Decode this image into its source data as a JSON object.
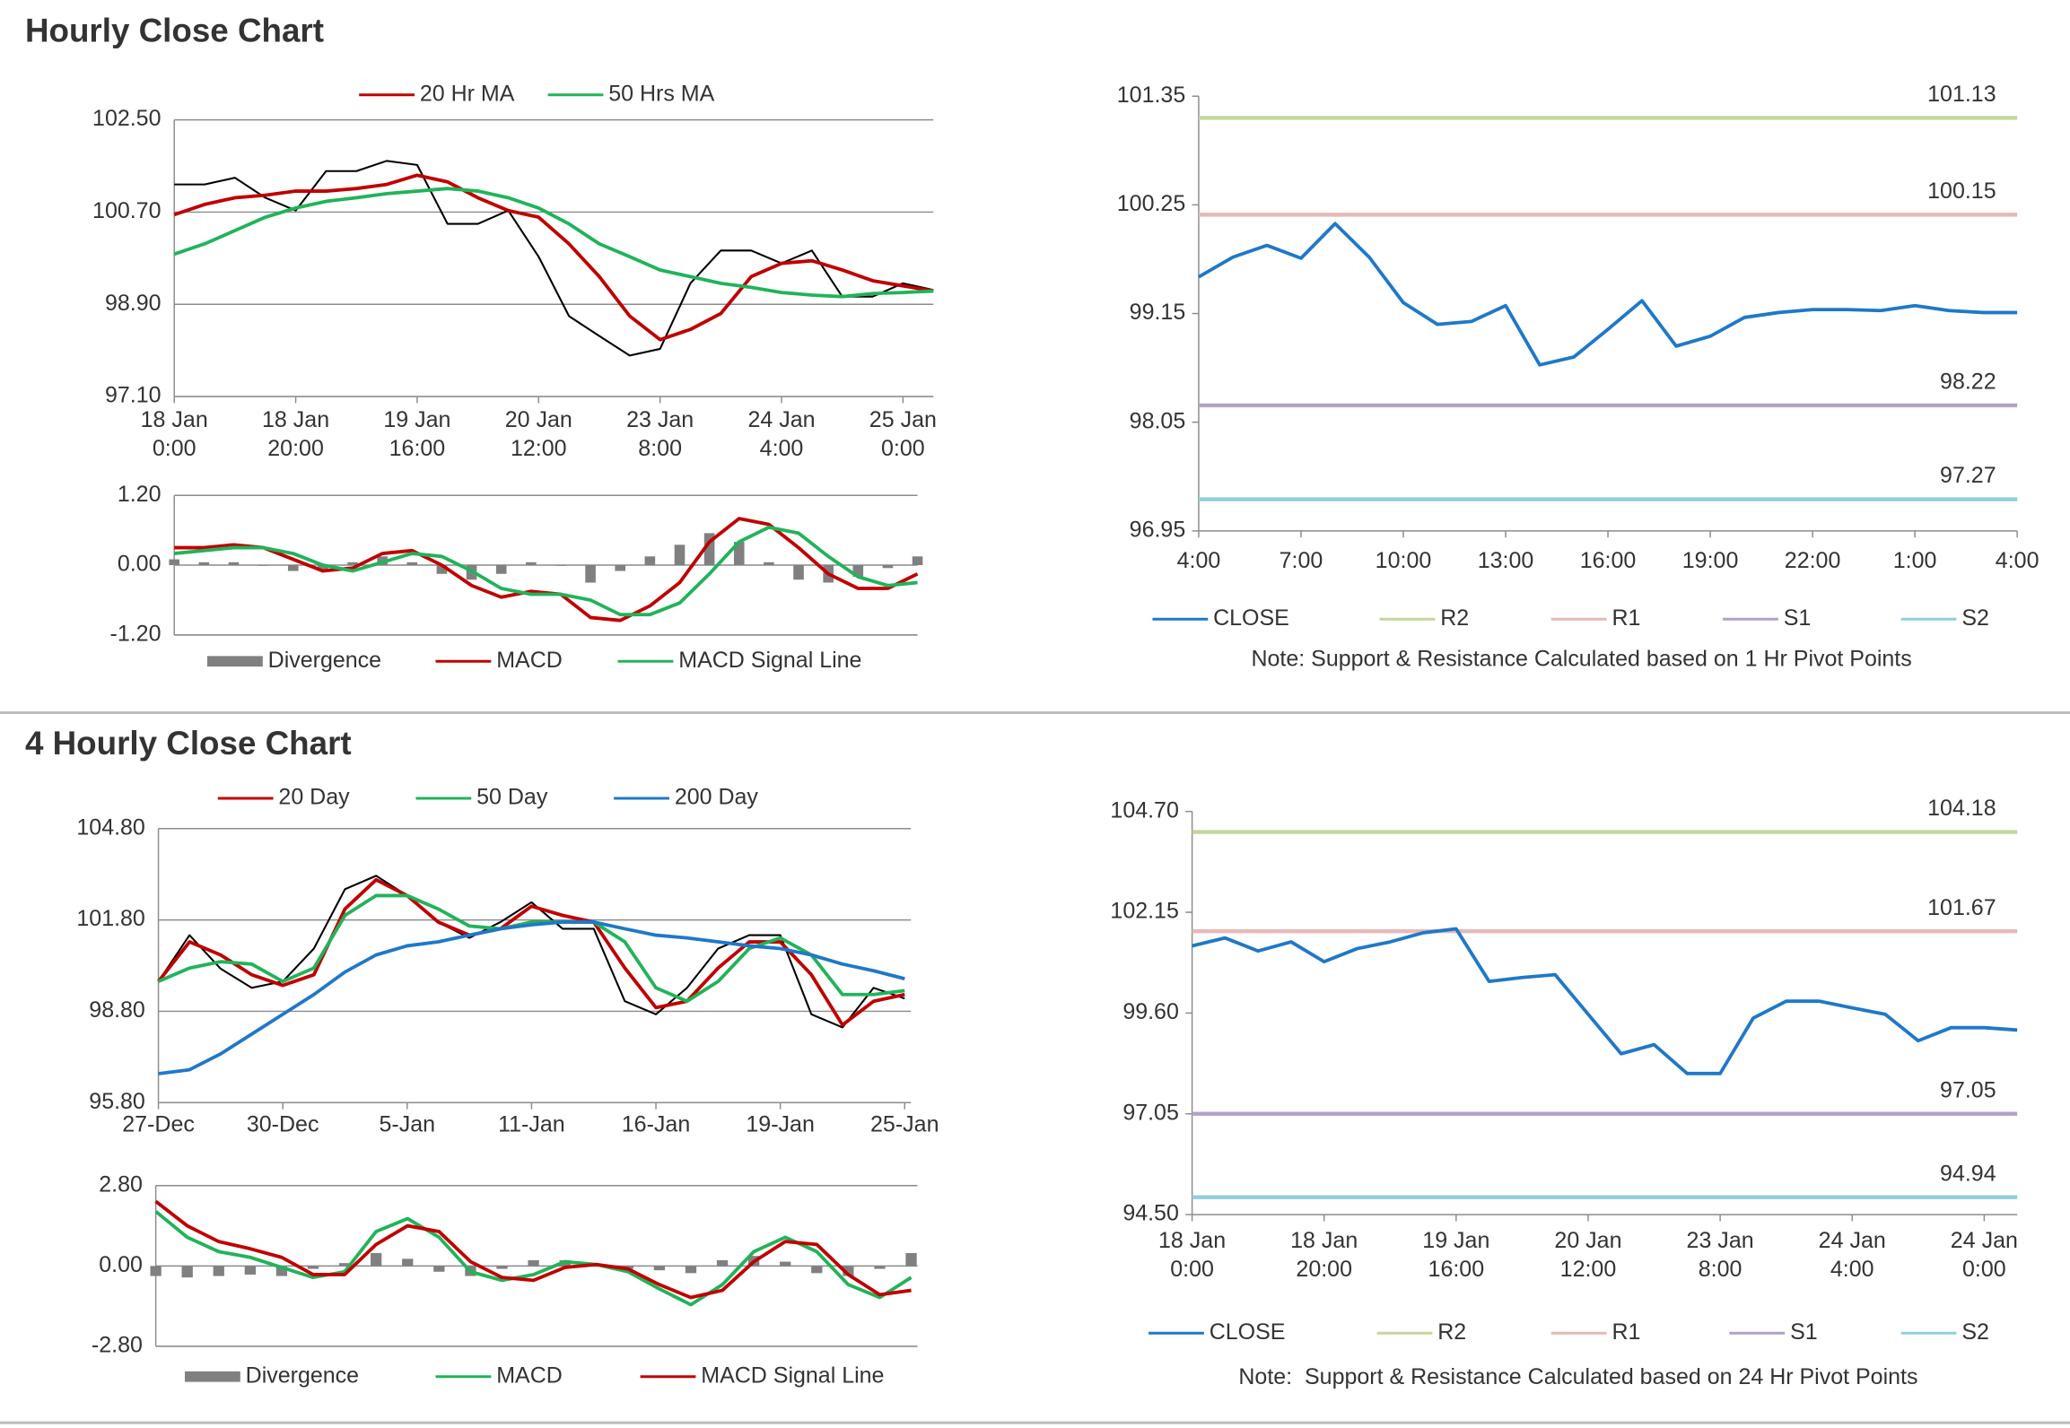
{
  "headings": [
    "Hourly Close Chart",
    "4 Hourly Close Chart"
  ],
  "chart_data": [
    {
      "type": "line",
      "grid": true,
      "x": [
        0,
        5,
        10,
        15,
        20,
        25,
        30,
        35,
        40,
        45,
        50,
        55,
        60,
        65,
        70,
        75,
        80,
        85,
        90,
        95,
        100,
        105,
        110,
        115,
        120,
        125
      ],
      "xlim": [
        0,
        125
      ],
      "xticks": [
        {
          "value": 0,
          "label": "18 Jan 0:00"
        },
        {
          "value": 20,
          "label": "18 Jan 20:00"
        },
        {
          "value": 40,
          "label": "19 Jan 16:00"
        },
        {
          "value": 60,
          "label": "20 Jan 12:00"
        },
        {
          "value": 80,
          "label": "23 Jan 8:00"
        },
        {
          "value": 100,
          "label": "24 Jan 4:00"
        },
        {
          "value": 120,
          "label": "25 Jan 0:00"
        }
      ],
      "ylim": [
        97.1,
        102.5
      ],
      "yticks": [
        {
          "value": 97.1,
          "label": "97.10"
        },
        {
          "value": 98.9,
          "label": "98.90"
        },
        {
          "value": 100.7,
          "label": "100.70"
        },
        {
          "value": 102.5,
          "label": "102.50"
        }
      ],
      "series": [
        {
          "color": "#000000",
          "values": [
            101.24,
            101.24,
            101.37,
            100.98,
            100.73,
            101.5,
            101.5,
            101.7,
            101.62,
            100.47,
            100.47,
            100.73,
            99.83,
            98.67,
            98.28,
            97.9,
            98.03,
            99.31,
            99.95,
            99.95,
            99.7,
            99.95,
            99.05,
            99.05,
            99.31,
            99.18
          ]
        },
        {
          "name": "20 Hr MA",
          "color": "#c00000",
          "values": [
            100.65,
            100.85,
            100.98,
            101.03,
            101.11,
            101.11,
            101.16,
            101.24,
            101.42,
            101.29,
            100.98,
            100.73,
            100.6,
            100.08,
            99.44,
            98.67,
            98.21,
            98.41,
            98.72,
            99.44,
            99.7,
            99.75,
            99.57,
            99.36,
            99.26,
            99.16
          ]
        },
        {
          "name": "50 Hrs MA",
          "color": "#21b35a",
          "values": [
            99.88,
            100.08,
            100.34,
            100.6,
            100.78,
            100.91,
            100.98,
            101.06,
            101.11,
            101.16,
            101.11,
            100.98,
            100.78,
            100.47,
            100.08,
            99.83,
            99.57,
            99.44,
            99.31,
            99.23,
            99.13,
            99.08,
            99.05,
            99.11,
            99.13,
            99.16
          ]
        }
      ]
    },
    {
      "type": "combo",
      "grid": true,
      "x": [
        0,
        5,
        10,
        15,
        20,
        25,
        30,
        35,
        40,
        45,
        50,
        55,
        60,
        65,
        70,
        75,
        80,
        85,
        90,
        95,
        100,
        105,
        110,
        115,
        120,
        125
      ],
      "xlim": [
        0,
        125
      ],
      "ylim": [
        -1.2,
        1.2
      ],
      "yticks": [
        {
          "value": -1.2,
          "label": "-1.20"
        },
        {
          "value": 0,
          "label": "0.00"
        },
        {
          "value": 1.2,
          "label": "1.20"
        }
      ],
      "series": [
        {
          "name": "Divergence",
          "kind": "bar",
          "color": "#808080",
          "values": [
            0.1,
            0.05,
            0.05,
            0,
            -0.1,
            -0.1,
            0.05,
            0.15,
            0.05,
            -0.15,
            -0.25,
            -0.15,
            0.05,
            0,
            -0.3,
            -0.1,
            0.15,
            0.35,
            0.55,
            0.4,
            0.05,
            -0.25,
            -0.3,
            -0.2,
            -0.05,
            0.15
          ]
        },
        {
          "name": "MACD",
          "color": "#c00000",
          "values": [
            0.3,
            0.3,
            0.35,
            0.3,
            0.1,
            -0.1,
            -0.05,
            0.2,
            0.25,
            0,
            -0.35,
            -0.55,
            -0.45,
            -0.5,
            -0.9,
            -0.95,
            -0.7,
            -0.3,
            0.4,
            0.8,
            0.7,
            0.3,
            -0.15,
            -0.4,
            -0.4,
            -0.15
          ]
        },
        {
          "name": "MACD Signal Line",
          "color": "#21b35a",
          "values": [
            0.2,
            0.25,
            0.3,
            0.3,
            0.2,
            0,
            -0.1,
            0.05,
            0.2,
            0.15,
            -0.1,
            -0.4,
            -0.5,
            -0.5,
            -0.6,
            -0.85,
            -0.85,
            -0.65,
            -0.15,
            0.4,
            0.65,
            0.55,
            0.15,
            -0.2,
            -0.35,
            -0.3
          ]
        }
      ]
    },
    {
      "type": "line",
      "grid": false,
      "x": [
        0,
        1,
        2,
        3,
        4,
        5,
        6,
        7,
        8,
        9,
        10,
        11,
        12,
        13,
        14,
        15,
        16,
        17,
        18,
        19,
        20,
        21,
        22,
        23,
        24
      ],
      "xlim": [
        0,
        24
      ],
      "xticks": [
        {
          "value": 0,
          "label": "4:00"
        },
        {
          "value": 3,
          "label": "7:00"
        },
        {
          "value": 6,
          "label": "10:00"
        },
        {
          "value": 9,
          "label": "13:00"
        },
        {
          "value": 12,
          "label": "16:00"
        },
        {
          "value": 15,
          "label": "19:00"
        },
        {
          "value": 18,
          "label": "22:00"
        },
        {
          "value": 21,
          "label": "1:00"
        },
        {
          "value": 24,
          "label": "4:00"
        }
      ],
      "ylim": [
        96.95,
        101.35
      ],
      "yticks": [
        96.95,
        98.05,
        99.15,
        100.25,
        101.35
      ],
      "series": [
        {
          "name": "CLOSE",
          "color": "#1f78c8",
          "values": [
            99.52,
            99.72,
            99.84,
            99.71,
            100.06,
            99.72,
            99.26,
            99.04,
            99.07,
            99.23,
            98.63,
            98.71,
            98.99,
            99.28,
            98.82,
            98.92,
            99.11,
            99.16,
            99.19,
            99.19,
            99.18,
            99.23,
            99.18,
            99.16,
            99.16
          ]
        }
      ],
      "levels": [
        {
          "name": "R2",
          "color": "#c3d69b",
          "value": 101.13
        },
        {
          "name": "R1",
          "color": "#e6b9b8",
          "value": 100.15
        },
        {
          "name": "S1",
          "color": "#b3a2c7",
          "value": 98.22
        },
        {
          "name": "S2",
          "color": "#93cddd",
          "value": 97.27
        }
      ],
      "note": "Note: Support & Resistance Calculated based on 1 Hr Pivot Points"
    },
    {
      "type": "line",
      "grid": true,
      "x": [
        0,
        5,
        10,
        15,
        20,
        25,
        30,
        35,
        40,
        45,
        50,
        55,
        60,
        65,
        70,
        75,
        80,
        85,
        90,
        95,
        100,
        105,
        110,
        115,
        120
      ],
      "xlim": [
        0,
        121
      ],
      "xticks": [
        {
          "value": 0,
          "label": "27-Dec"
        },
        {
          "value": 20,
          "label": "30-Dec"
        },
        {
          "value": 40,
          "label": "5-Jan"
        },
        {
          "value": 60,
          "label": "11-Jan"
        },
        {
          "value": 80,
          "label": "16-Jan"
        },
        {
          "value": 100,
          "label": "19-Jan"
        },
        {
          "value": 120,
          "label": "25-Jan"
        }
      ],
      "ylim": [
        95.8,
        104.8
      ],
      "yticks": [
        {
          "value": 95.8,
          "label": "95.80"
        },
        {
          "value": 98.8,
          "label": "98.80"
        },
        {
          "value": 101.8,
          "label": "101.80"
        },
        {
          "value": 104.8,
          "label": "104.80"
        }
      ],
      "series": [
        {
          "color": "#000000",
          "values": [
            99.78,
            101.3,
            100.2,
            99.57,
            99.78,
            100.86,
            102.81,
            103.25,
            102.6,
            101.73,
            101.21,
            101.73,
            102.38,
            101.51,
            101.51,
            99.13,
            98.7,
            99.57,
            100.86,
            101.3,
            101.3,
            98.7,
            98.27,
            99.57,
            99.22
          ]
        },
        {
          "name": "20 Day",
          "color": "#c00000",
          "values": [
            99.78,
            101.08,
            100.65,
            100.0,
            99.65,
            100.0,
            102.16,
            103.12,
            102.6,
            101.73,
            101.3,
            101.51,
            102.25,
            101.95,
            101.73,
            100.22,
            98.92,
            99.13,
            100.22,
            101.08,
            101.08,
            100.0,
            98.35,
            99.13,
            99.35
          ]
        },
        {
          "name": "50 Day",
          "color": "#21b35a",
          "values": [
            99.78,
            100.22,
            100.43,
            100.35,
            99.78,
            100.22,
            101.95,
            102.6,
            102.6,
            102.16,
            101.6,
            101.51,
            101.73,
            101.73,
            101.73,
            101.08,
            99.57,
            99.13,
            99.78,
            100.86,
            101.21,
            100.65,
            99.35,
            99.35,
            99.48
          ]
        },
        {
          "name": "200 Day",
          "color": "#1f78c8",
          "values": [
            96.75,
            96.88,
            97.4,
            98.05,
            98.7,
            99.35,
            100.09,
            100.65,
            100.95,
            101.08,
            101.3,
            101.51,
            101.64,
            101.73,
            101.73,
            101.51,
            101.3,
            101.21,
            101.08,
            100.95,
            100.86,
            100.65,
            100.35,
            100.13,
            99.87
          ]
        }
      ]
    },
    {
      "type": "combo",
      "grid": true,
      "x": [
        0,
        5,
        10,
        15,
        20,
        25,
        30,
        35,
        40,
        45,
        50,
        55,
        60,
        65,
        70,
        75,
        80,
        85,
        90,
        95,
        100,
        105,
        110,
        115,
        120
      ],
      "xlim": [
        0,
        121
      ],
      "ylim": [
        -2.8,
        2.8
      ],
      "yticks": [
        {
          "value": -2.8,
          "label": "-2.80"
        },
        {
          "value": 0,
          "label": "0.00"
        },
        {
          "value": 2.8,
          "label": "2.80"
        }
      ],
      "series": [
        {
          "name": "Divergence",
          "kind": "bar",
          "color": "#808080",
          "values": [
            -0.35,
            -0.4,
            -0.35,
            -0.3,
            -0.35,
            -0.1,
            0.1,
            0.45,
            0.25,
            -0.2,
            -0.35,
            -0.1,
            0.2,
            0.2,
            0,
            -0.1,
            -0.15,
            -0.25,
            0.2,
            0.35,
            0.15,
            -0.25,
            -0.35,
            -0.1,
            0.45
          ]
        },
        {
          "name": "MACD",
          "color": "#21b35a",
          "values": [
            1.9,
            1.0,
            0.5,
            0.3,
            -0.05,
            -0.4,
            -0.2,
            1.2,
            1.65,
            1.0,
            -0.2,
            -0.5,
            -0.3,
            0.15,
            0.05,
            -0.2,
            -0.8,
            -1.35,
            -0.65,
            0.5,
            1.0,
            0.5,
            -0.65,
            -1.1,
            -0.4
          ]
        },
        {
          "name": "MACD Signal Line",
          "color": "#c00000",
          "values": [
            2.25,
            1.4,
            0.85,
            0.6,
            0.3,
            -0.3,
            -0.3,
            0.75,
            1.4,
            1.2,
            0.15,
            -0.4,
            -0.5,
            -0.05,
            0.05,
            -0.1,
            -0.65,
            -1.1,
            -0.85,
            0.15,
            0.85,
            0.75,
            -0.3,
            -1.0,
            -0.85
          ]
        }
      ]
    },
    {
      "type": "line",
      "grid": false,
      "x": [
        0,
        5,
        10,
        15,
        20,
        25,
        30,
        35,
        40,
        45,
        50,
        55,
        60,
        65,
        70,
        75,
        80,
        85,
        90,
        95,
        100,
        105,
        110,
        115,
        120,
        125
      ],
      "xlim": [
        0,
        125
      ],
      "xticks": [
        {
          "value": 0,
          "label": "18 Jan 0:00"
        },
        {
          "value": 20,
          "label": "18 Jan 20:00"
        },
        {
          "value": 40,
          "label": "19 Jan 16:00"
        },
        {
          "value": 60,
          "label": "20 Jan 12:00"
        },
        {
          "value": 80,
          "label": "23 Jan 8:00"
        },
        {
          "value": 100,
          "label": "24 Jan 4:00"
        },
        {
          "value": 120,
          "label": "24 Jan 0:00"
        }
      ],
      "ylim": [
        94.5,
        104.7
      ],
      "yticks": [
        {
          "value": 94.5,
          "label": "94.50"
        },
        97.05,
        {
          "value": 99.6,
          "label": "99.60"
        },
        102.15,
        {
          "value": 104.7,
          "label": "104.70"
        }
      ],
      "series": [
        {
          "name": "CLOSE",
          "color": "#1f78c8",
          "values": [
            101.3,
            101.5,
            101.17,
            101.4,
            100.9,
            101.23,
            101.4,
            101.63,
            101.73,
            100.4,
            100.5,
            100.57,
            99.57,
            98.57,
            98.8,
            98.07,
            98.07,
            99.47,
            99.9,
            99.9,
            99.73,
            99.57,
            98.9,
            99.23,
            99.23,
            99.17
          ]
        }
      ],
      "levels": [
        {
          "name": "R2",
          "color": "#c3d69b",
          "value": 104.18
        },
        {
          "name": "R1",
          "color": "#e6b9b8",
          "value": 101.67
        },
        {
          "name": "S1",
          "color": "#b3a2c7",
          "value": 97.05
        },
        {
          "name": "S2",
          "color": "#93cddd",
          "value": 94.94
        }
      ],
      "note": "Note:  Support & Resistance Calculated based on 24 Hr Pivot Points"
    }
  ]
}
